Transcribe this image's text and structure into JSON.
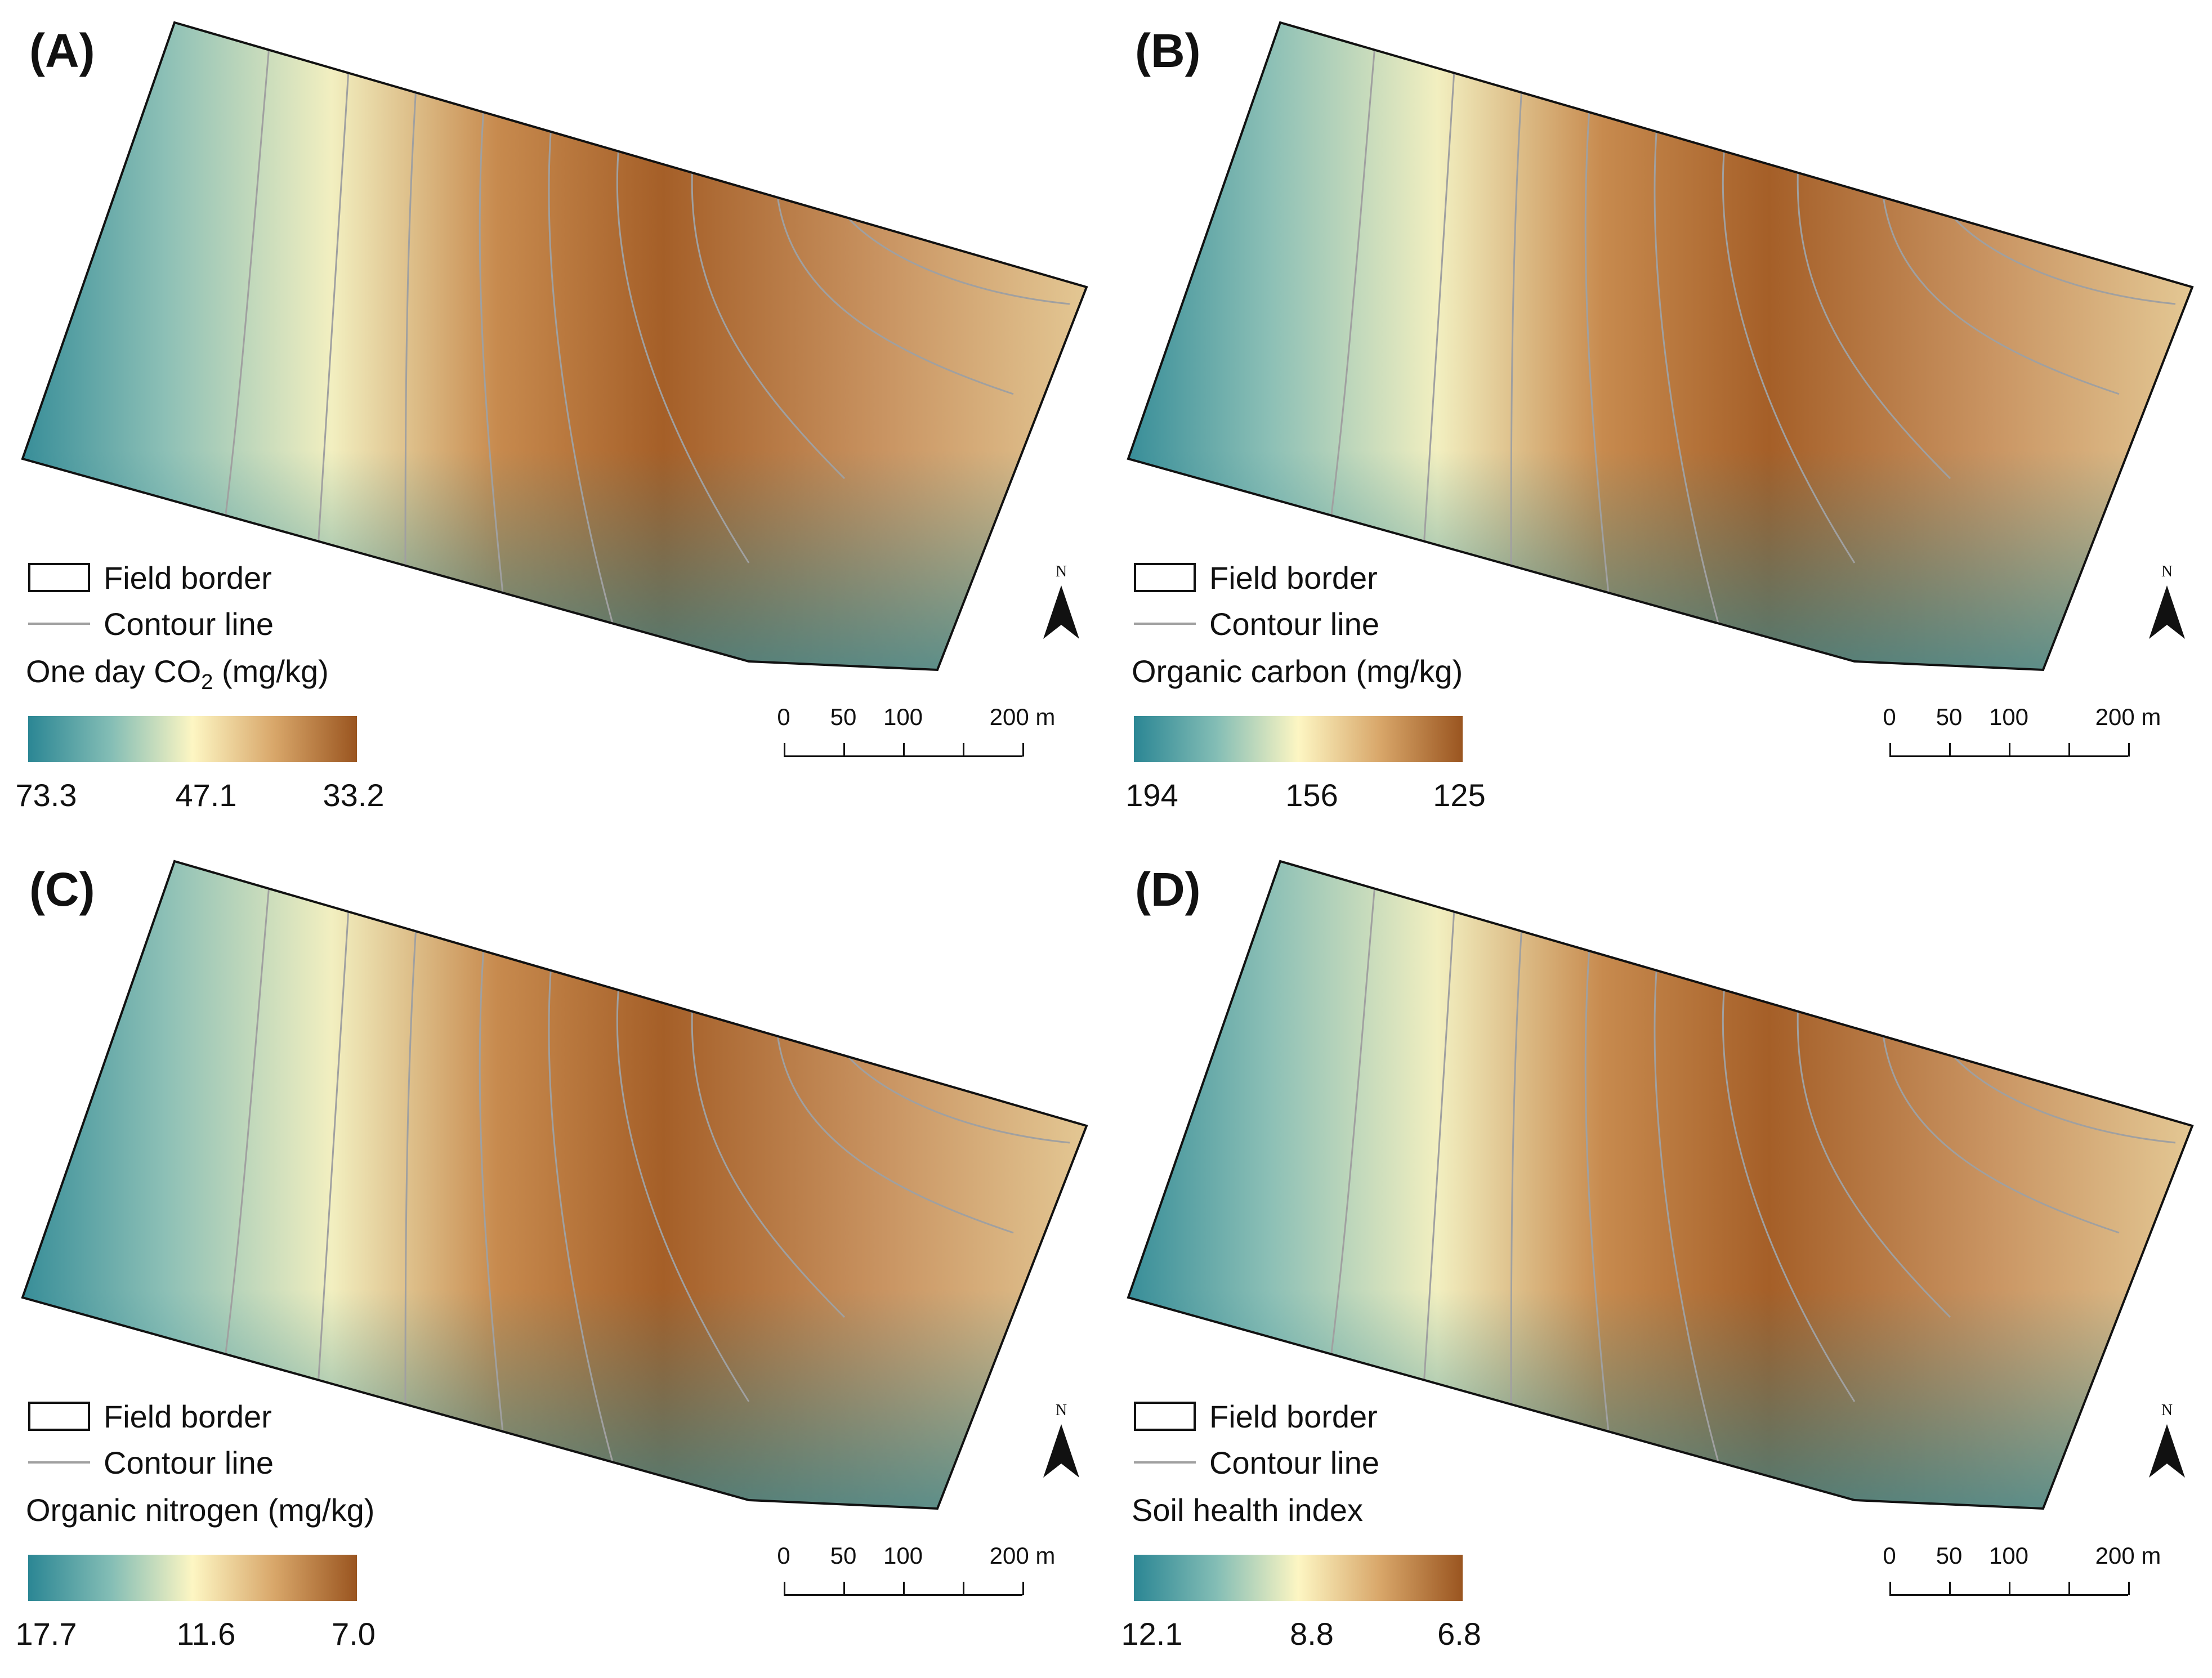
{
  "colors": {
    "low_teal": "#2b8694",
    "mid_cream": "#fdf6c3",
    "high_brown": "#9a5520",
    "contour_gray": "#a0a0a0",
    "border_black": "#111111"
  },
  "legend": {
    "field_border": "Field border",
    "contour_line": "Contour line"
  },
  "north_arrow": {
    "letter": "N"
  },
  "scale_bar": {
    "labels": [
      "0",
      "50",
      "100",
      "200 m"
    ]
  },
  "panels": [
    {
      "id": "A",
      "label": "(A)",
      "title_main": "One day CO",
      "title_sub": "2",
      "title_unit": " (mg/kg)",
      "ticks": [
        "73.3",
        "47.1",
        "33.2"
      ]
    },
    {
      "id": "B",
      "label": "(B)",
      "title_main": "Organic carbon (mg/kg)",
      "title_sub": "",
      "title_unit": "",
      "ticks": [
        "194",
        "156",
        "125"
      ]
    },
    {
      "id": "C",
      "label": "(C)",
      "title_main": "Organic nitrogen (mg/kg)",
      "title_sub": "",
      "title_unit": "",
      "ticks": [
        "17.7",
        "11.6",
        "7.0"
      ]
    },
    {
      "id": "D",
      "label": "(D)",
      "title_main": "Soil health index",
      "title_sub": "",
      "title_unit": "",
      "ticks": [
        "12.1",
        "8.8",
        "6.8"
      ]
    }
  ]
}
